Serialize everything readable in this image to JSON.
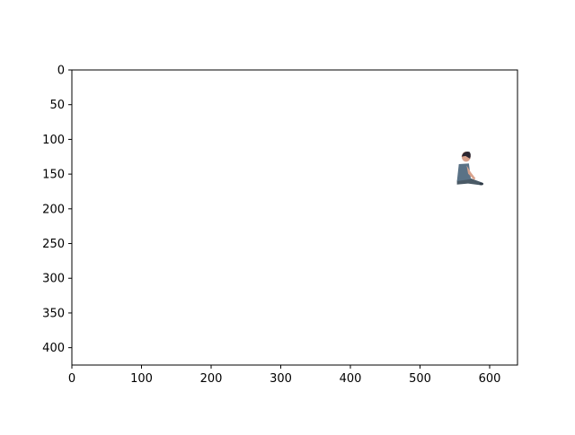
{
  "chart_data": {
    "type": "image",
    "xlim": [
      0,
      640
    ],
    "ylim": [
      425,
      0
    ],
    "x_ticks": [
      0,
      100,
      200,
      300,
      400,
      500,
      600
    ],
    "y_ticks": [
      0,
      50,
      100,
      150,
      200,
      250,
      300,
      350,
      400
    ],
    "x_tick_labels": [
      "0",
      "100",
      "200",
      "300",
      "400",
      "500",
      "600"
    ],
    "y_tick_labels": [
      "0",
      "50",
      "100",
      "150",
      "200",
      "250",
      "300",
      "350",
      "400"
    ],
    "grid": false,
    "figure": {
      "description_icon": "seated-person-figure",
      "extent_x": [
        551,
        591
      ],
      "extent_y": [
        117,
        166
      ]
    }
  },
  "colors": {
    "background": "#ffffff",
    "axis": "#000000",
    "shirt": "#5a7286",
    "hair": "#2b2630",
    "skin": "#d9a28c",
    "pants": "#4a5a66",
    "shadow": "#2e3a46"
  }
}
